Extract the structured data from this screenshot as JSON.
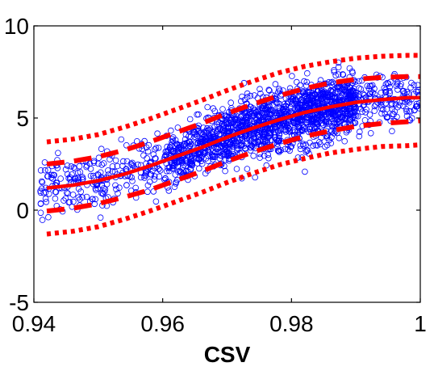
{
  "chart_data": {
    "type": "scatter",
    "title": "",
    "xlabel": "CSV",
    "ylabel": "",
    "xlim": [
      0.94,
      1.0
    ],
    "ylim": [
      -5,
      10
    ],
    "xticks": [
      0.94,
      0.96,
      0.98,
      1.0
    ],
    "xtick_labels": [
      "0.94",
      "0.96",
      "0.98",
      "1"
    ],
    "yticks": [
      -5,
      0,
      5,
      10
    ],
    "ytick_labels": [
      "-5",
      "0",
      "5",
      "10"
    ],
    "grid": false,
    "legend": "none",
    "colors": {
      "scatter": "#0000ff",
      "fit": "#ff0000",
      "axes": "#000000",
      "background": "#ffffff"
    },
    "series": [
      {
        "kind": "scatter",
        "marker": "open-circle",
        "color": "#0000ff",
        "point_count_approx": 2000,
        "trend": "sigmoid increase from about 1 near x=0.942 to about 6 near x=1.0",
        "spread_sd_approx": 0.8
      },
      {
        "kind": "line",
        "style": "solid",
        "color": "#ff0000",
        "x": [
          0.942,
          0.946,
          0.95,
          0.954,
          0.958,
          0.962,
          0.966,
          0.97,
          0.974,
          0.978,
          0.982,
          0.986,
          0.99,
          0.994,
          0.998,
          1.0
        ],
        "y": [
          1.2,
          1.35,
          1.6,
          1.95,
          2.4,
          2.9,
          3.4,
          3.95,
          4.45,
          4.9,
          5.3,
          5.6,
          5.85,
          6.0,
          6.1,
          6.1
        ]
      },
      {
        "kind": "line",
        "style": "dashed",
        "color": "#ff0000",
        "x": [
          0.942,
          0.946,
          0.95,
          0.954,
          0.958,
          0.962,
          0.966,
          0.97,
          0.974,
          0.978,
          0.982,
          0.986,
          0.99,
          0.994,
          0.998,
          1.0
        ],
        "y": [
          2.5,
          2.65,
          2.9,
          3.25,
          3.7,
          4.2,
          4.7,
          5.25,
          5.75,
          6.2,
          6.6,
          6.9,
          7.1,
          7.2,
          7.25,
          7.25
        ]
      },
      {
        "kind": "line",
        "style": "dashed",
        "color": "#ff0000",
        "x": [
          0.942,
          0.946,
          0.95,
          0.954,
          0.958,
          0.962,
          0.966,
          0.97,
          0.974,
          0.978,
          0.982,
          0.986,
          0.99,
          0.994,
          0.998,
          1.0
        ],
        "y": [
          -0.05,
          0.1,
          0.35,
          0.7,
          1.1,
          1.6,
          2.1,
          2.65,
          3.15,
          3.6,
          4.0,
          4.3,
          4.55,
          4.7,
          4.8,
          4.85
        ]
      },
      {
        "kind": "line",
        "style": "dotted",
        "color": "#ff0000",
        "x": [
          0.942,
          0.946,
          0.95,
          0.954,
          0.958,
          0.962,
          0.966,
          0.97,
          0.974,
          0.978,
          0.982,
          0.986,
          0.99,
          0.994,
          0.998,
          1.0
        ],
        "y": [
          3.7,
          3.85,
          4.1,
          4.5,
          4.95,
          5.45,
          5.95,
          6.5,
          7.0,
          7.45,
          7.8,
          8.05,
          8.25,
          8.35,
          8.4,
          8.4
        ]
      },
      {
        "kind": "line",
        "style": "dotted",
        "color": "#ff0000",
        "x": [
          0.942,
          0.946,
          0.95,
          0.954,
          0.958,
          0.962,
          0.966,
          0.97,
          0.974,
          0.978,
          0.982,
          0.986,
          0.99,
          0.994,
          0.998,
          1.0
        ],
        "y": [
          -1.3,
          -1.15,
          -0.9,
          -0.5,
          -0.05,
          0.45,
          0.95,
          1.5,
          2.0,
          2.45,
          2.8,
          3.1,
          3.3,
          3.45,
          3.5,
          3.55
        ]
      }
    ]
  }
}
